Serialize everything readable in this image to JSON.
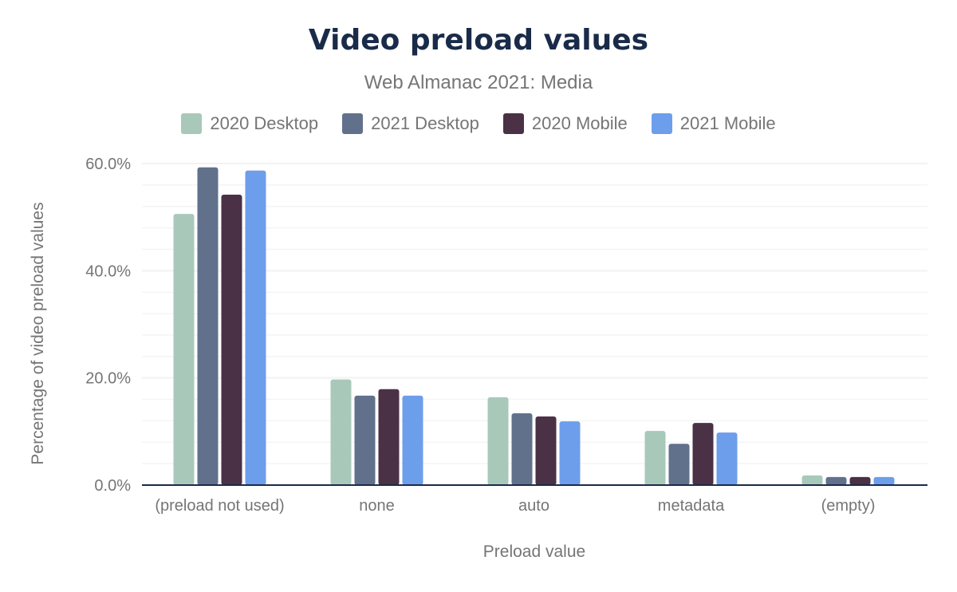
{
  "chart_data": {
    "type": "bar",
    "title": "Video preload values",
    "subtitle": "Web Almanac 2021: Media",
    "xlabel": "Preload value",
    "ylabel": "Percentage of video preload values",
    "categories": [
      "(preload not used)",
      "none",
      "auto",
      "metadata",
      "(empty)"
    ],
    "series": [
      {
        "name": "2020 Desktop",
        "color": "#a8c9ba",
        "values": [
          50.6,
          19.7,
          16.4,
          10.1,
          1.8
        ]
      },
      {
        "name": "2021 Desktop",
        "color": "#61718c",
        "values": [
          59.3,
          16.7,
          13.4,
          7.7,
          1.5
        ]
      },
      {
        "name": "2020 Mobile",
        "color": "#4a3145",
        "values": [
          54.2,
          17.9,
          12.8,
          11.6,
          1.5
        ]
      },
      {
        "name": "2021 Mobile",
        "color": "#6d9eeb",
        "values": [
          58.7,
          16.7,
          11.9,
          9.8,
          1.5
        ]
      }
    ],
    "ylim": [
      0,
      60
    ],
    "yticks": [
      "0.0%",
      "20.0%",
      "40.0%",
      "60.0%"
    ],
    "ytick_values": [
      0,
      20,
      40,
      60
    ],
    "grid": true,
    "legend_position": "top"
  }
}
